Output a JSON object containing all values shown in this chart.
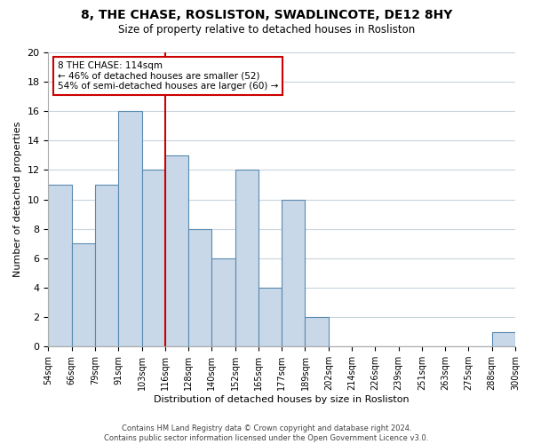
{
  "title": "8, THE CHASE, ROSLISTON, SWADLINCOTE, DE12 8HY",
  "subtitle": "Size of property relative to detached houses in Rosliston",
  "xlabel": "Distribution of detached houses by size in Rosliston",
  "ylabel": "Number of detached properties",
  "bar_color": "#c8d8e8",
  "bar_edge_color": "#5a8ab0",
  "bin_labels": [
    "54sqm",
    "66sqm",
    "79sqm",
    "91sqm",
    "103sqm",
    "116sqm",
    "128sqm",
    "140sqm",
    "152sqm",
    "165sqm",
    "177sqm",
    "189sqm",
    "202sqm",
    "214sqm",
    "226sqm",
    "239sqm",
    "251sqm",
    "263sqm",
    "275sqm",
    "288sqm",
    "300sqm"
  ],
  "counts": [
    11,
    7,
    11,
    16,
    12,
    13,
    8,
    6,
    12,
    4,
    10,
    2,
    0,
    0,
    0,
    0,
    0,
    0,
    0,
    1
  ],
  "ylim": [
    0,
    20
  ],
  "yticks": [
    0,
    2,
    4,
    6,
    8,
    10,
    12,
    14,
    16,
    18,
    20
  ],
  "marker_color": "#cc0000",
  "marker_bin_index": 5,
  "annotation_line1": "8 THE CHASE: 114sqm",
  "annotation_line2": "← 46% of detached houses are smaller (52)",
  "annotation_line3": "54% of semi-detached houses are larger (60) →",
  "annotation_box_color": "#ffffff",
  "annotation_box_edge": "#cc0000",
  "footer1": "Contains HM Land Registry data © Crown copyright and database right 2024.",
  "footer2": "Contains public sector information licensed under the Open Government Licence v3.0.",
  "background_color": "#ffffff",
  "grid_color": "#c8d4dc"
}
